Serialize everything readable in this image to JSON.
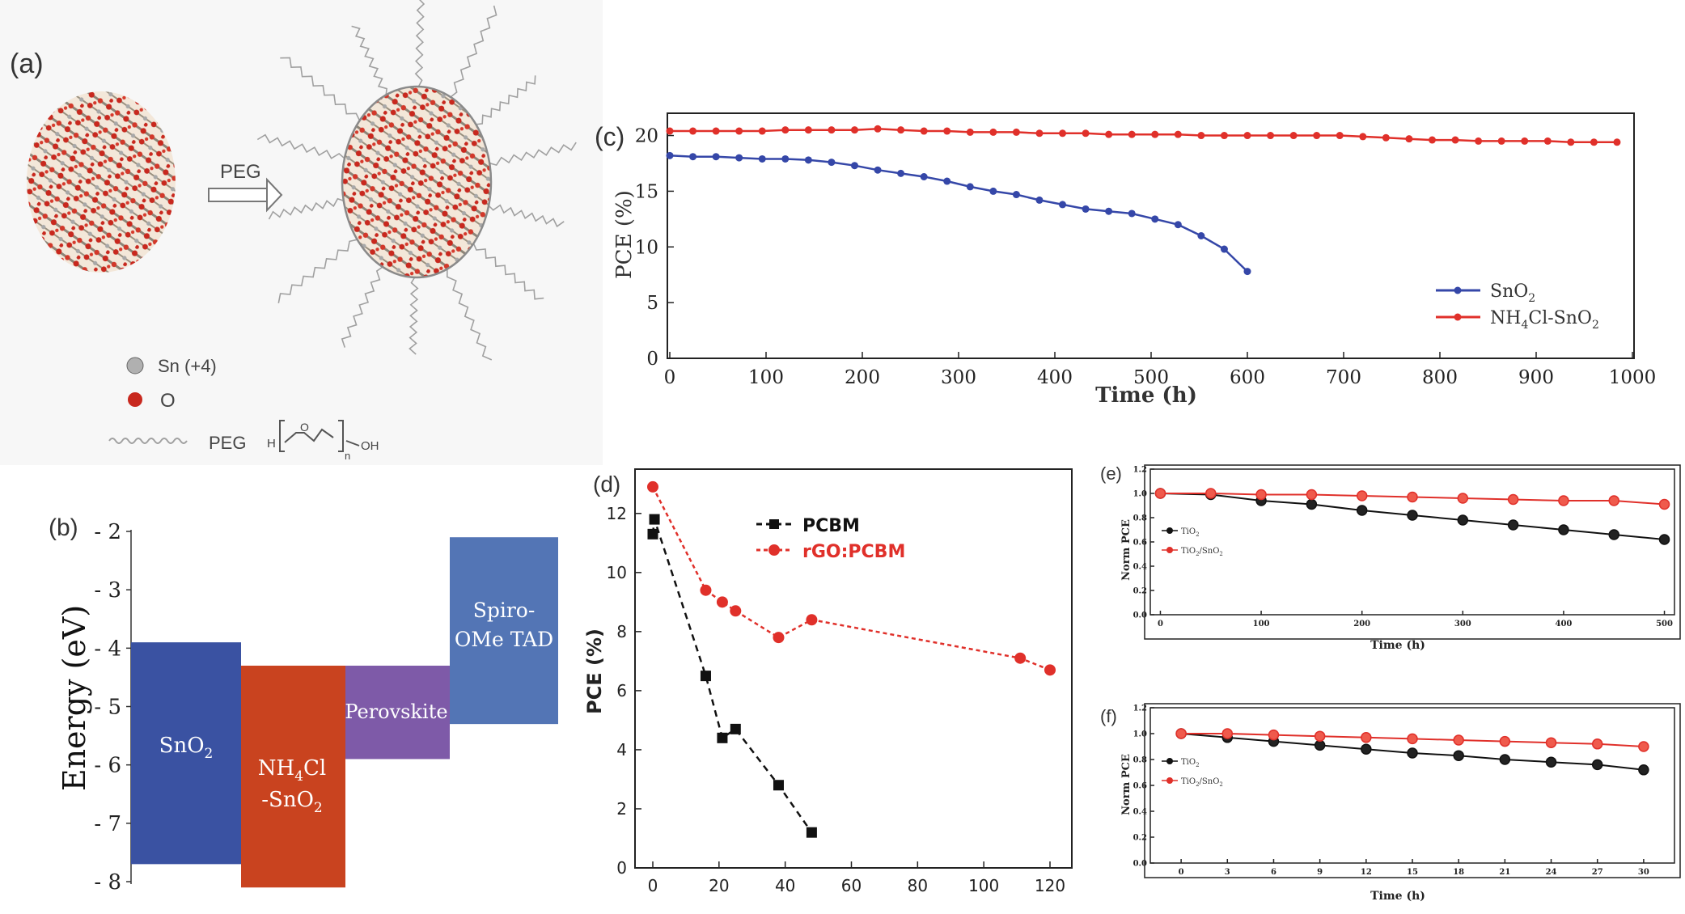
{
  "panel_a": {
    "label": "(a)",
    "arrow_label": "PEG",
    "legend": {
      "sn": "Sn (+4)",
      "o": "O",
      "peg": "PEG",
      "formula_h": "H",
      "formula_o": "O",
      "formula_n": "n",
      "formula_oh": "OH"
    },
    "colors": {
      "sn": "#9a9a9a",
      "o": "#c8281e",
      "peg": "#a0a0a0"
    }
  },
  "chart_data": [
    {
      "id": "b",
      "type": "energy-level-diagram",
      "panel_label": "(b)",
      "ylabel": "Energy (eV)",
      "y_ticks": [
        "- 2",
        "- 3",
        "- 4",
        "- 5",
        "- 6",
        "- 7",
        "- 8"
      ],
      "ylim": [
        -8,
        -2
      ],
      "bars": [
        {
          "name": "SnO2",
          "label_main": "SnO",
          "label_sub": "2",
          "top": -3.9,
          "bottom": -7.7,
          "color": "#3a52a2"
        },
        {
          "name": "NH4Cl-SnO2",
          "label_l1_main": "NH",
          "label_l1_sub": "4",
          "label_l1_rest": "Cl",
          "label_l2_main": "-SnO",
          "label_l2_sub": "2",
          "top": -4.3,
          "bottom": -8.1,
          "color": "#c9431f"
        },
        {
          "name": "Perovskite",
          "label_main": "Perovskite",
          "top": -4.3,
          "bottom": -5.9,
          "color": "#7e5aa8"
        },
        {
          "name": "Spiro-OMe TAD",
          "label_l1": "Spiro-",
          "label_l2": "OMe TAD",
          "top": -2.1,
          "bottom": -5.3,
          "color": "#5375b5"
        }
      ]
    },
    {
      "id": "c",
      "type": "line",
      "panel_label": "(c)",
      "xlabel": "Time (h)",
      "ylabel": "PCE (%)",
      "xlim": [
        0,
        1000
      ],
      "ylim": [
        0,
        22
      ],
      "x_ticks": [
        0,
        100,
        200,
        300,
        400,
        500,
        600,
        700,
        800,
        900,
        1000
      ],
      "y_ticks": [
        0,
        5,
        10,
        15,
        20
      ],
      "series": [
        {
          "name": "SnO2",
          "legend_main": "SnO",
          "legend_sub": "2",
          "color": "#3547a8",
          "x": [
            0,
            24,
            48,
            72,
            96,
            120,
            144,
            168,
            192,
            216,
            240,
            264,
            288,
            312,
            336,
            360,
            384,
            408,
            432,
            456,
            480,
            504,
            528,
            552,
            576,
            600
          ],
          "y": [
            18.2,
            18.1,
            18.1,
            18.0,
            17.9,
            17.9,
            17.8,
            17.6,
            17.3,
            16.9,
            16.6,
            16.3,
            15.9,
            15.4,
            15.0,
            14.7,
            14.2,
            13.8,
            13.4,
            13.2,
            13.0,
            12.5,
            12.0,
            11.0,
            9.8,
            7.8
          ]
        },
        {
          "name": "NH4Cl-SnO2",
          "legend_main1": "NH",
          "legend_sub1": "4",
          "legend_main2": "Cl-SnO",
          "legend_sub2": "2",
          "color": "#e0302a",
          "x": [
            0,
            24,
            48,
            72,
            96,
            120,
            144,
            168,
            192,
            216,
            240,
            264,
            288,
            312,
            336,
            360,
            384,
            408,
            432,
            456,
            480,
            504,
            528,
            552,
            576,
            600,
            624,
            648,
            672,
            696,
            720,
            744,
            768,
            792,
            816,
            840,
            864,
            888,
            912,
            936,
            960,
            984
          ],
          "y": [
            20.4,
            20.4,
            20.4,
            20.4,
            20.4,
            20.5,
            20.5,
            20.5,
            20.5,
            20.6,
            20.5,
            20.4,
            20.4,
            20.3,
            20.3,
            20.3,
            20.2,
            20.2,
            20.2,
            20.1,
            20.1,
            20.1,
            20.1,
            20.0,
            20.0,
            20.0,
            20.0,
            20.0,
            20.0,
            20.0,
            19.9,
            19.8,
            19.7,
            19.6,
            19.6,
            19.5,
            19.5,
            19.5,
            19.5,
            19.4,
            19.4,
            19.4
          ]
        }
      ],
      "legend_position": "bottom-right"
    },
    {
      "id": "d",
      "type": "line",
      "panel_label": "(d)",
      "xlabel": "",
      "ylabel": "PCE (%)",
      "xlim": [
        -5,
        125
      ],
      "ylim": [
        0,
        13.5
      ],
      "x_ticks": [
        0,
        20,
        40,
        60,
        80,
        100,
        120
      ],
      "y_ticks": [
        0,
        2,
        4,
        6,
        8,
        10,
        12
      ],
      "series": [
        {
          "name": "PCBM",
          "color": "#111111",
          "marker": "square",
          "x": [
            0,
            0.5,
            16,
            21,
            25,
            38,
            48
          ],
          "y": [
            11.3,
            11.8,
            6.5,
            4.4,
            4.7,
            2.8,
            1.2
          ]
        },
        {
          "name": "rGO:PCBM",
          "color": "#e0302a",
          "marker": "circle",
          "x": [
            0,
            16,
            21,
            25,
            38,
            48,
            111,
            120
          ],
          "y": [
            12.9,
            9.4,
            9.0,
            8.7,
            7.8,
            8.4,
            7.1,
            6.7
          ]
        }
      ],
      "legend_position": "top-middle"
    },
    {
      "id": "e",
      "type": "line",
      "panel_label": "(e)",
      "xlabel": "Time (h)",
      "ylabel": "Norm PCE",
      "xlim": [
        -10,
        510
      ],
      "ylim": [
        0,
        1.2
      ],
      "x_ticks": [
        0,
        100,
        200,
        300,
        400,
        500
      ],
      "y_ticks": [
        "0.0",
        "0.2",
        "0.4",
        "0.6",
        "0.8",
        "1.0",
        "1.2"
      ],
      "series": [
        {
          "name": "TiO2",
          "legend_main": "TiO",
          "legend_sub": "2",
          "color": "#111111",
          "x": [
            0,
            50,
            100,
            150,
            200,
            250,
            300,
            350,
            400,
            450,
            500
          ],
          "y": [
            1.0,
            0.99,
            0.94,
            0.91,
            0.86,
            0.82,
            0.78,
            0.74,
            0.7,
            0.66,
            0.62
          ]
        },
        {
          "name": "TiO2/SnO2",
          "legend_main": "TiO",
          "legend_sub": "2",
          "legend_rest": "/SnO",
          "legend_sub2": "2",
          "color": "#e0302a",
          "x": [
            0,
            50,
            100,
            150,
            200,
            250,
            300,
            350,
            400,
            450,
            500
          ],
          "y": [
            1.0,
            1.0,
            0.99,
            0.99,
            0.98,
            0.97,
            0.96,
            0.95,
            0.94,
            0.94,
            0.91
          ]
        }
      ],
      "legend_position": "middle-left"
    },
    {
      "id": "f",
      "type": "line",
      "panel_label": "(f)",
      "xlabel": "Time (h)",
      "ylabel": "Norm PCE",
      "xlim": [
        -2,
        32
      ],
      "ylim": [
        0,
        1.2
      ],
      "x_ticks": [
        0,
        3,
        6,
        9,
        12,
        15,
        18,
        21,
        24,
        27,
        30
      ],
      "y_ticks": [
        "0.0",
        "0.2",
        "0.4",
        "0.6",
        "0.8",
        "1.0",
        "1.2"
      ],
      "series": [
        {
          "name": "TiO2",
          "legend_main": "TiO",
          "legend_sub": "2",
          "color": "#111111",
          "x": [
            0,
            3,
            6,
            9,
            12,
            15,
            18,
            21,
            24,
            27,
            30
          ],
          "y": [
            1.0,
            0.97,
            0.94,
            0.91,
            0.88,
            0.85,
            0.83,
            0.8,
            0.78,
            0.76,
            0.72
          ]
        },
        {
          "name": "TiO2/SnO2",
          "legend_main": "TiO",
          "legend_sub": "2",
          "legend_rest": "/SnO",
          "legend_sub2": "2",
          "color": "#e0302a",
          "x": [
            0,
            3,
            6,
            9,
            12,
            15,
            18,
            21,
            24,
            27,
            30
          ],
          "y": [
            1.0,
            1.0,
            0.99,
            0.98,
            0.97,
            0.96,
            0.95,
            0.94,
            0.93,
            0.92,
            0.9
          ]
        }
      ],
      "legend_position": "middle-left"
    }
  ]
}
